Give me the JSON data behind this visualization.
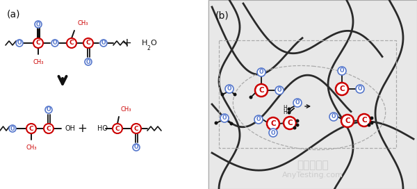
{
  "bg_color": "#ffffff",
  "panel_a_label": "(a)",
  "panel_b_label": "(b)",
  "red_color": "#cc0000",
  "blue_color": "#5577cc",
  "black_color": "#111111",
  "chain_color": "#333333",
  "watermark_color": "#cccccc",
  "watermark1": "嘉峡检测网",
  "watermark2": "AnyTesting.com"
}
